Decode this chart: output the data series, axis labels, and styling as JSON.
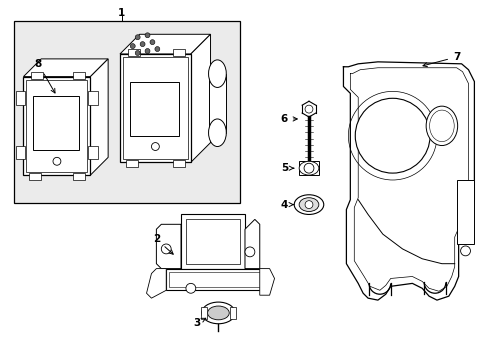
{
  "background_color": "#ffffff",
  "line_color": "#000000",
  "inset_fill": "#ebebeb",
  "fig_width": 4.89,
  "fig_height": 3.6,
  "dpi": 100
}
